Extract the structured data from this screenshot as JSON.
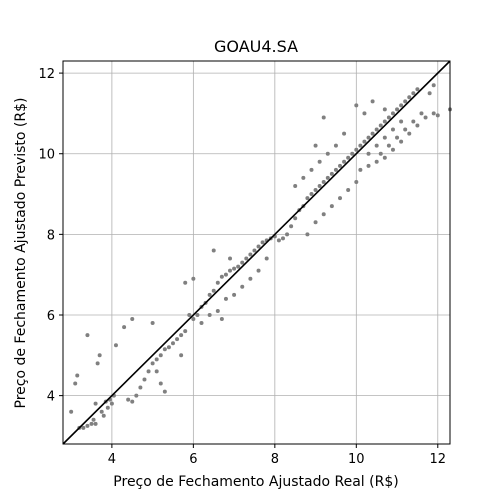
{
  "chart_data": {
    "type": "scatter",
    "title": "GOAU4.SA",
    "xlabel": "Preço de Fechamento Ajustado Real (R$)",
    "ylabel": "Preço de Fechamento Ajustado Previsto (R$)",
    "xlim": [
      2.8,
      12.3
    ],
    "ylim": [
      2.8,
      12.3
    ],
    "x_ticks": [
      4,
      6,
      8,
      10,
      12
    ],
    "y_ticks": [
      4,
      6,
      8,
      10,
      12
    ],
    "grid": true,
    "reference_line": {
      "from": [
        2.8,
        2.8
      ],
      "to": [
        12.3,
        12.3
      ],
      "color": "#000000"
    },
    "point_color": "#808080",
    "series": [
      {
        "points": [
          [
            3.0,
            3.6
          ],
          [
            3.1,
            4.3
          ],
          [
            3.15,
            4.5
          ],
          [
            3.2,
            3.2
          ],
          [
            3.3,
            3.2
          ],
          [
            3.4,
            3.25
          ],
          [
            3.5,
            3.3
          ],
          [
            3.55,
            3.4
          ],
          [
            3.6,
            3.3
          ],
          [
            3.6,
            3.8
          ],
          [
            3.65,
            4.8
          ],
          [
            3.7,
            5.0
          ],
          [
            3.75,
            3.6
          ],
          [
            3.8,
            3.5
          ],
          [
            3.85,
            3.85
          ],
          [
            3.9,
            3.7
          ],
          [
            3.95,
            3.9
          ],
          [
            4.0,
            3.8
          ],
          [
            4.05,
            4.0
          ],
          [
            3.4,
            5.5
          ],
          [
            4.1,
            5.25
          ],
          [
            4.3,
            5.7
          ],
          [
            4.5,
            5.9
          ],
          [
            4.4,
            3.9
          ],
          [
            4.5,
            3.85
          ],
          [
            4.6,
            4.0
          ],
          [
            4.7,
            4.2
          ],
          [
            4.8,
            4.4
          ],
          [
            4.9,
            4.6
          ],
          [
            5.0,
            4.8
          ],
          [
            5.1,
            4.9
          ],
          [
            5.2,
            5.0
          ],
          [
            5.3,
            5.15
          ],
          [
            5.4,
            5.2
          ],
          [
            5.5,
            5.3
          ],
          [
            5.6,
            5.4
          ],
          [
            5.7,
            5.5
          ],
          [
            5.8,
            5.6
          ],
          [
            5.0,
            5.8
          ],
          [
            5.1,
            4.6
          ],
          [
            5.2,
            4.3
          ],
          [
            5.3,
            4.1
          ],
          [
            5.7,
            5.0
          ],
          [
            5.9,
            6.0
          ],
          [
            6.0,
            5.9
          ],
          [
            6.1,
            6.0
          ],
          [
            6.2,
            6.2
          ],
          [
            6.3,
            6.3
          ],
          [
            6.4,
            6.5
          ],
          [
            6.5,
            6.6
          ],
          [
            6.6,
            6.8
          ],
          [
            6.7,
            6.95
          ],
          [
            6.8,
            7.0
          ],
          [
            6.9,
            7.1
          ],
          [
            7.0,
            7.15
          ],
          [
            7.1,
            7.2
          ],
          [
            7.2,
            7.3
          ],
          [
            7.3,
            7.4
          ],
          [
            7.4,
            7.5
          ],
          [
            7.5,
            7.6
          ],
          [
            7.6,
            7.7
          ],
          [
            7.7,
            7.8
          ],
          [
            7.8,
            7.85
          ],
          [
            7.9,
            7.9
          ],
          [
            8.0,
            7.95
          ],
          [
            8.1,
            7.85
          ],
          [
            8.2,
            7.9
          ],
          [
            8.3,
            8.0
          ],
          [
            5.8,
            6.8
          ],
          [
            6.0,
            6.9
          ],
          [
            6.5,
            7.6
          ],
          [
            6.9,
            7.4
          ],
          [
            6.6,
            6.1
          ],
          [
            6.8,
            6.4
          ],
          [
            7.0,
            6.5
          ],
          [
            7.2,
            6.7
          ],
          [
            7.4,
            6.9
          ],
          [
            7.6,
            7.1
          ],
          [
            7.8,
            7.4
          ],
          [
            6.2,
            5.8
          ],
          [
            6.4,
            6.0
          ],
          [
            6.7,
            5.9
          ],
          [
            8.4,
            8.2
          ],
          [
            8.5,
            8.4
          ],
          [
            8.6,
            8.6
          ],
          [
            8.7,
            8.7
          ],
          [
            8.8,
            8.9
          ],
          [
            8.9,
            9.0
          ],
          [
            9.0,
            9.1
          ],
          [
            9.1,
            9.2
          ],
          [
            9.2,
            9.3
          ],
          [
            9.3,
            9.4
          ],
          [
            9.4,
            9.5
          ],
          [
            9.5,
            9.6
          ],
          [
            9.6,
            9.7
          ],
          [
            9.7,
            9.8
          ],
          [
            9.8,
            9.9
          ],
          [
            9.9,
            10.0
          ],
          [
            8.5,
            9.2
          ],
          [
            8.7,
            9.4
          ],
          [
            8.9,
            9.6
          ],
          [
            9.1,
            9.8
          ],
          [
            9.3,
            10.0
          ],
          [
            9.5,
            10.2
          ],
          [
            9.7,
            10.5
          ],
          [
            9.2,
            10.9
          ],
          [
            9.0,
            10.2
          ],
          [
            8.8,
            8.0
          ],
          [
            9.0,
            8.3
          ],
          [
            9.2,
            8.5
          ],
          [
            9.4,
            8.7
          ],
          [
            9.6,
            8.9
          ],
          [
            9.8,
            9.1
          ],
          [
            10.0,
            9.3
          ],
          [
            10.0,
            10.1
          ],
          [
            10.1,
            10.2
          ],
          [
            10.2,
            10.3
          ],
          [
            10.3,
            10.4
          ],
          [
            10.4,
            10.5
          ],
          [
            10.5,
            10.6
          ],
          [
            10.6,
            10.7
          ],
          [
            10.7,
            10.8
          ],
          [
            10.8,
            10.9
          ],
          [
            10.9,
            11.0
          ],
          [
            11.0,
            11.1
          ],
          [
            11.1,
            11.2
          ],
          [
            11.2,
            11.3
          ],
          [
            11.3,
            11.4
          ],
          [
            11.4,
            11.5
          ],
          [
            11.5,
            11.6
          ],
          [
            10.0,
            11.2
          ],
          [
            10.2,
            11.0
          ],
          [
            10.4,
            11.3
          ],
          [
            10.7,
            11.1
          ],
          [
            10.1,
            9.6
          ],
          [
            10.3,
            9.7
          ],
          [
            10.5,
            9.8
          ],
          [
            10.7,
            9.9
          ],
          [
            10.9,
            10.1
          ],
          [
            11.1,
            10.3
          ],
          [
            11.3,
            10.5
          ],
          [
            11.5,
            10.7
          ],
          [
            11.7,
            10.9
          ],
          [
            11.9,
            11.0
          ],
          [
            12.0,
            10.95
          ],
          [
            12.3,
            11.1
          ],
          [
            11.6,
            11.0
          ],
          [
            11.8,
            11.5
          ],
          [
            11.9,
            11.7
          ],
          [
            10.6,
            10.0
          ],
          [
            10.8,
            10.2
          ],
          [
            11.0,
            10.4
          ],
          [
            11.2,
            10.6
          ],
          [
            11.4,
            10.8
          ],
          [
            10.3,
            10.0
          ],
          [
            10.5,
            10.2
          ],
          [
            10.7,
            10.4
          ],
          [
            10.9,
            10.6
          ],
          [
            11.1,
            10.8
          ]
        ]
      }
    ]
  }
}
